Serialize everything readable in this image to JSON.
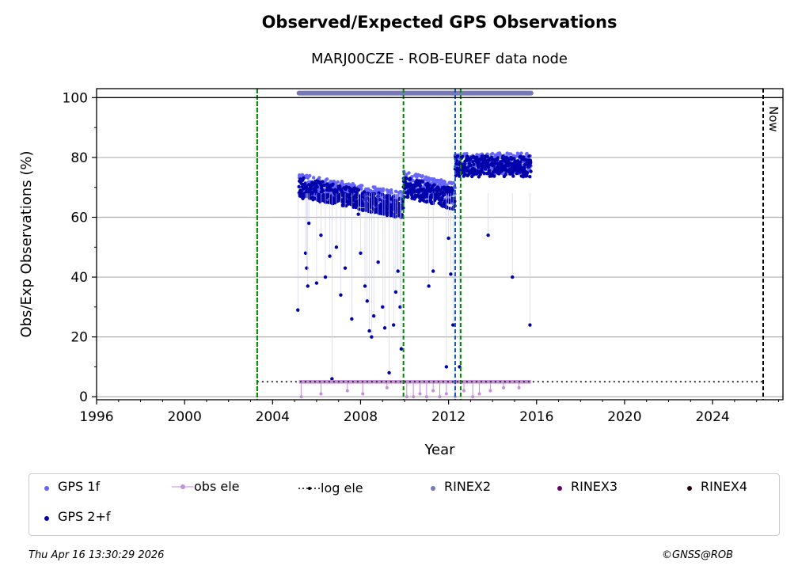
{
  "chart_data": {
    "type": "scatter",
    "title": "Observed/Expected GPS Observations",
    "subtitle": "MARJ00CZE - ROB-EUREF data node",
    "xlabel": "Year",
    "ylabel": "Obs/Exp Observations (%)",
    "xlim": [
      1996,
      2027.2
    ],
    "ylim": [
      -1,
      103
    ],
    "xticks": [
      1996,
      2000,
      2004,
      2008,
      2012,
      2016,
      2020,
      2024
    ],
    "yticks": [
      0,
      20,
      40,
      60,
      80,
      100
    ],
    "grid": "y",
    "legend_position": "bottom",
    "series": [
      {
        "name": "GPS 1f",
        "color": "#6666ff",
        "segments": [
          {
            "x0": 2005.2,
            "x1": 2009.95,
            "y0": 71,
            "y1": 65
          },
          {
            "x0": 2009.95,
            "x1": 2012.3,
            "y0": 72,
            "y1": 68
          },
          {
            "x0": 2012.3,
            "x1": 2015.75,
            "y0": 78,
            "y1": 78
          }
        ]
      },
      {
        "name": "GPS 2+f",
        "color": "#0000aa",
        "segments": [
          {
            "x0": 2005.2,
            "x1": 2009.95,
            "y0": 70,
            "y1": 63
          },
          {
            "x0": 2009.95,
            "x1": 2012.3,
            "y0": 70,
            "y1": 66
          },
          {
            "x0": 2012.3,
            "x1": 2015.75,
            "y0": 77,
            "y1": 77
          }
        ],
        "outliers": [
          [
            2005.15,
            29
          ],
          [
            2005.5,
            48
          ],
          [
            2005.55,
            43
          ],
          [
            2005.6,
            37
          ],
          [
            2005.65,
            58
          ],
          [
            2006.0,
            38
          ],
          [
            2006.2,
            54
          ],
          [
            2006.4,
            40
          ],
          [
            2006.6,
            47
          ],
          [
            2006.7,
            6
          ],
          [
            2006.9,
            50
          ],
          [
            2007.1,
            34
          ],
          [
            2007.3,
            43
          ],
          [
            2007.6,
            26
          ],
          [
            2007.9,
            61
          ],
          [
            2008.0,
            48
          ],
          [
            2008.2,
            37
          ],
          [
            2008.3,
            32
          ],
          [
            2008.4,
            22
          ],
          [
            2008.5,
            20
          ],
          [
            2008.6,
            27
          ],
          [
            2008.8,
            45
          ],
          [
            2009.0,
            30
          ],
          [
            2009.1,
            23
          ],
          [
            2009.3,
            8
          ],
          [
            2009.5,
            24
          ],
          [
            2009.6,
            35
          ],
          [
            2009.7,
            42
          ],
          [
            2009.8,
            30
          ],
          [
            2009.85,
            16
          ],
          [
            2011.1,
            37
          ],
          [
            2011.3,
            42
          ],
          [
            2011.9,
            10
          ],
          [
            2012.0,
            53
          ],
          [
            2012.1,
            41
          ],
          [
            2012.2,
            24
          ],
          [
            2012.5,
            10
          ],
          [
            2013.8,
            54
          ],
          [
            2014.9,
            40
          ],
          [
            2015.7,
            24
          ]
        ]
      },
      {
        "name": "obs ele",
        "color": "#c38fd6",
        "band": {
          "x0": 2005.2,
          "x1": 2015.75,
          "y": 5
        },
        "dips": [
          [
            2005.3,
            0
          ],
          [
            2006.2,
            1
          ],
          [
            2007.4,
            2
          ],
          [
            2008.1,
            1
          ],
          [
            2009.2,
            3
          ],
          [
            2010.1,
            0
          ],
          [
            2010.4,
            0
          ],
          [
            2010.7,
            1
          ],
          [
            2011.0,
            0
          ],
          [
            2011.3,
            2
          ],
          [
            2011.6,
            0
          ],
          [
            2011.9,
            1
          ],
          [
            2012.3,
            0
          ],
          [
            2012.7,
            2
          ],
          [
            2013.1,
            0
          ],
          [
            2013.4,
            1
          ],
          [
            2013.9,
            2
          ],
          [
            2014.5,
            3
          ],
          [
            2015.2,
            3
          ]
        ]
      },
      {
        "name": "log ele",
        "color": "#000000",
        "x0": 2003.3,
        "x1": 2026.3,
        "y": 5
      },
      {
        "name": "RINEX2",
        "color": "#7777bb",
        "x0": 2005.2,
        "x1": 2015.75,
        "y": 101.5
      },
      {
        "name": "RINEX3",
        "color": "#660066"
      },
      {
        "name": "RINEX4",
        "color": "#220011"
      }
    ],
    "vlines": [
      {
        "x": 2003.3,
        "color": "#dd0000",
        "style": "dotted"
      },
      {
        "x": 2003.3,
        "color": "#008800",
        "style": "dashed"
      },
      {
        "x": 2009.95,
        "color": "#008800",
        "style": "dashed"
      },
      {
        "x": 2012.3,
        "color": "#1155aa",
        "style": "dashed"
      },
      {
        "x": 2012.55,
        "color": "#008800",
        "style": "dashed"
      },
      {
        "x": 2026.3,
        "color": "#000000",
        "style": "dashed",
        "label": "Now"
      }
    ]
  },
  "legend": {
    "gps1f": "GPS 1f",
    "obsele": "obs ele",
    "logele": "log ele",
    "rinex2": "RINEX2",
    "rinex3": "RINEX3",
    "rinex4": "RINEX4",
    "gps2f": "GPS 2+f"
  },
  "footer": {
    "timestamp": "Thu Apr 16 13:30:29 2026",
    "credit": "©GNSS@ROB"
  }
}
